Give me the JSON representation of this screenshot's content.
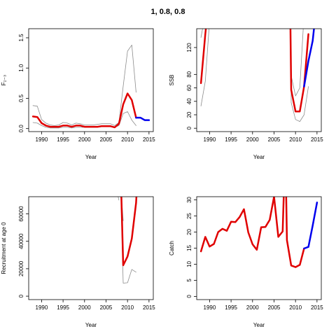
{
  "chart_data": {
    "title": "1, 0.8, 0.8",
    "colors": {
      "estimate": "#e00000",
      "projection": "#0000ee",
      "bounds": "#8c8c8c"
    },
    "panels": [
      {
        "type": "line",
        "xlabel": "Year",
        "ylabel": "F₂₋₃",
        "xlim": [
          1987,
          2016
        ],
        "ylim": [
          -0.05,
          1.65
        ],
        "xticks": [
          1990,
          1995,
          2000,
          2005,
          2010,
          2015
        ],
        "xtick_labels": [
          "1990",
          "1995",
          "2000",
          "2005",
          "2010",
          "2015"
        ],
        "yticks": [
          0,
          0.5,
          1.0,
          1.5
        ],
        "ytick_labels": [
          "0.0",
          "0.5",
          "1.0",
          "1.5"
        ],
        "series": [
          {
            "role": "upper",
            "x": [
              1988,
              1989,
              1990,
              1991,
              1992,
              1993,
              1994,
              1995,
              1996,
              1997,
              1998,
              1999,
              2000,
              2001,
              2002,
              2003,
              2004,
              2005,
              2006,
              2007,
              2008,
              2009,
              2010,
              2011,
              2012
            ],
            "y": [
              0.38,
              0.37,
              0.15,
              0.09,
              0.06,
              0.05,
              0.06,
              0.1,
              0.09,
              0.06,
              0.09,
              0.08,
              0.06,
              0.06,
              0.06,
              0.07,
              0.08,
              0.08,
              0.08,
              0.05,
              0.1,
              0.7,
              1.28,
              1.38,
              0.6
            ]
          },
          {
            "role": "lower",
            "x": [
              1988,
              1989,
              1990,
              1991,
              1992,
              1993,
              1994,
              1995,
              1996,
              1997,
              1998,
              1999,
              2000,
              2001,
              2002,
              2003,
              2004,
              2005,
              2006,
              2007,
              2008,
              2009,
              2010,
              2011,
              2012
            ],
            "y": [
              0.1,
              0.09,
              0.05,
              0.02,
              0.01,
              0.01,
              0.01,
              0.02,
              0.02,
              0.01,
              0.02,
              0.02,
              0.02,
              0.02,
              0.02,
              0.02,
              0.03,
              0.03,
              0.03,
              0.02,
              0.05,
              0.25,
              0.28,
              0.14,
              0.05
            ]
          },
          {
            "role": "estimate",
            "x": [
              1988,
              1989,
              1990,
              1991,
              1992,
              1993,
              1994,
              1995,
              1996,
              1997,
              1998,
              1999,
              2000,
              2001,
              2002,
              2003,
              2004,
              2005,
              2006,
              2007,
              2008,
              2009,
              2010,
              2011,
              2012
            ],
            "y": [
              0.2,
              0.19,
              0.09,
              0.05,
              0.03,
              0.03,
              0.03,
              0.05,
              0.05,
              0.03,
              0.05,
              0.05,
              0.03,
              0.03,
              0.03,
              0.03,
              0.04,
              0.04,
              0.04,
              0.02,
              0.08,
              0.4,
              0.58,
              0.47,
              0.18
            ]
          },
          {
            "role": "projection",
            "x": [
              2012,
              2013,
              2014,
              2015
            ],
            "y": [
              0.18,
              0.18,
              0.14,
              0.14
            ]
          }
        ]
      },
      {
        "type": "line",
        "xlabel": "Year",
        "ylabel": "SSB",
        "xlim": [
          1987,
          2016
        ],
        "ylim": [
          -5,
          148
        ],
        "xticks": [
          1990,
          1995,
          2000,
          2005,
          2010,
          2015
        ],
        "xtick_labels": [
          "1990",
          "1995",
          "2000",
          "2005",
          "2010",
          "2015"
        ],
        "yticks": [
          0,
          20,
          40,
          60,
          80,
          120
        ],
        "ytick_labels": [
          "0",
          "20",
          "40",
          "60",
          "80",
          "120"
        ],
        "series": [
          {
            "role": "upper",
            "x": [
              1988,
              1989
            ],
            "y": [
              135,
              170
            ]
          },
          {
            "role": "lower",
            "x": [
              1988,
              1989,
              1990
            ],
            "y": [
              33,
              70,
              160
            ]
          },
          {
            "role": "upper",
            "x": [
              2008.8,
              2009,
              2010,
              2011,
              2012
            ],
            "y": [
              160,
              78,
              48,
              60,
              170
            ]
          },
          {
            "role": "lower",
            "x": [
              2008.8,
              2009,
              2010,
              2011,
              2012,
              2013
            ],
            "y": [
              160,
              38,
              13,
              10,
              20,
              62
            ]
          },
          {
            "role": "estimate",
            "x": [
              1988,
              1989,
              1989.5
            ],
            "y": [
              67,
              140,
              170
            ]
          },
          {
            "role": "estimate",
            "x": [
              2008.8,
              2009,
              2010,
              2011,
              2012,
              2013
            ],
            "y": [
              160,
              57,
              25,
              25,
              62,
              140
            ]
          },
          {
            "role": "projection",
            "x": [
              2012,
              2013,
              2014,
              2014.5
            ],
            "y": [
              62,
              100,
              130,
              160
            ]
          }
        ]
      },
      {
        "type": "line",
        "xlabel": "Year",
        "ylabel": "Recruitment at age 0",
        "xlim": [
          1987,
          2016
        ],
        "ylim": [
          -2500,
          72500
        ],
        "xticks": [
          1990,
          1995,
          2000,
          2005,
          2010,
          2015
        ],
        "xtick_labels": [
          "1990",
          "1995",
          "2000",
          "2005",
          "2010",
          "2015"
        ],
        "yticks": [
          0,
          20000,
          40000,
          60000
        ],
        "ytick_labels": [
          "0",
          "20000",
          "40000",
          "60000"
        ],
        "series": [
          {
            "role": "upper",
            "x": [
              2007.3,
              2008
            ],
            "y": [
              80000,
              70000
            ]
          },
          {
            "role": "upper",
            "x": [
              2008.4,
              2009,
              2010,
              2011,
              2012
            ],
            "y": [
              80000,
              9500,
              9800,
              19500,
              17500
            ]
          },
          {
            "role": "lower",
            "x": [
              2008.4,
              2009
            ],
            "y": [
              80000,
              55000
            ]
          },
          {
            "role": "estimate",
            "x": [
              2008.5,
              2009,
              2010,
              2011,
              2012,
              2012.2
            ],
            "y": [
              80000,
              22500,
              29000,
              42000,
              68000,
              80000
            ]
          }
        ]
      },
      {
        "type": "line",
        "xlabel": "Year",
        "ylabel": "Catch",
        "xlim": [
          1987,
          2016
        ],
        "ylim": [
          -1,
          31
        ],
        "xticks": [
          1990,
          1995,
          2000,
          2005,
          2010,
          2015
        ],
        "xtick_labels": [
          "1990",
          "1995",
          "2000",
          "2005",
          "2010",
          "2015"
        ],
        "yticks": [
          0,
          5,
          10,
          15,
          20,
          25,
          30
        ],
        "ytick_labels": [
          "0",
          "5",
          "10",
          "15",
          "20",
          "25",
          "30"
        ],
        "series": [
          {
            "role": "estimate",
            "x": [
              1988,
              1989,
              1990,
              1991,
              1992,
              1993,
              1994,
              1995,
              1996,
              1997,
              1998,
              1999,
              2000,
              2001,
              2002,
              2003,
              2004,
              2005,
              2006,
              2007,
              2007.3
            ],
            "y": [
              14,
              18.5,
              15.5,
              16.3,
              20,
              21,
              20.4,
              23.2,
              23.1,
              24.7,
              27.1,
              19.9,
              16.2,
              14.5,
              21.5,
              21.6,
              23.8,
              31,
              18.5,
              20.2,
              33
            ]
          },
          {
            "role": "estimate",
            "x": [
              2007.8,
              2008,
              2009,
              2010,
              2011,
              2012
            ],
            "y": [
              33,
              17.5,
              9.6,
              9.1,
              9.8,
              14.9
            ]
          },
          {
            "role": "projection",
            "x": [
              2012,
              2013,
              2014,
              2015
            ],
            "y": [
              14.9,
              15.4,
              22,
              29.2
            ]
          }
        ]
      }
    ]
  }
}
